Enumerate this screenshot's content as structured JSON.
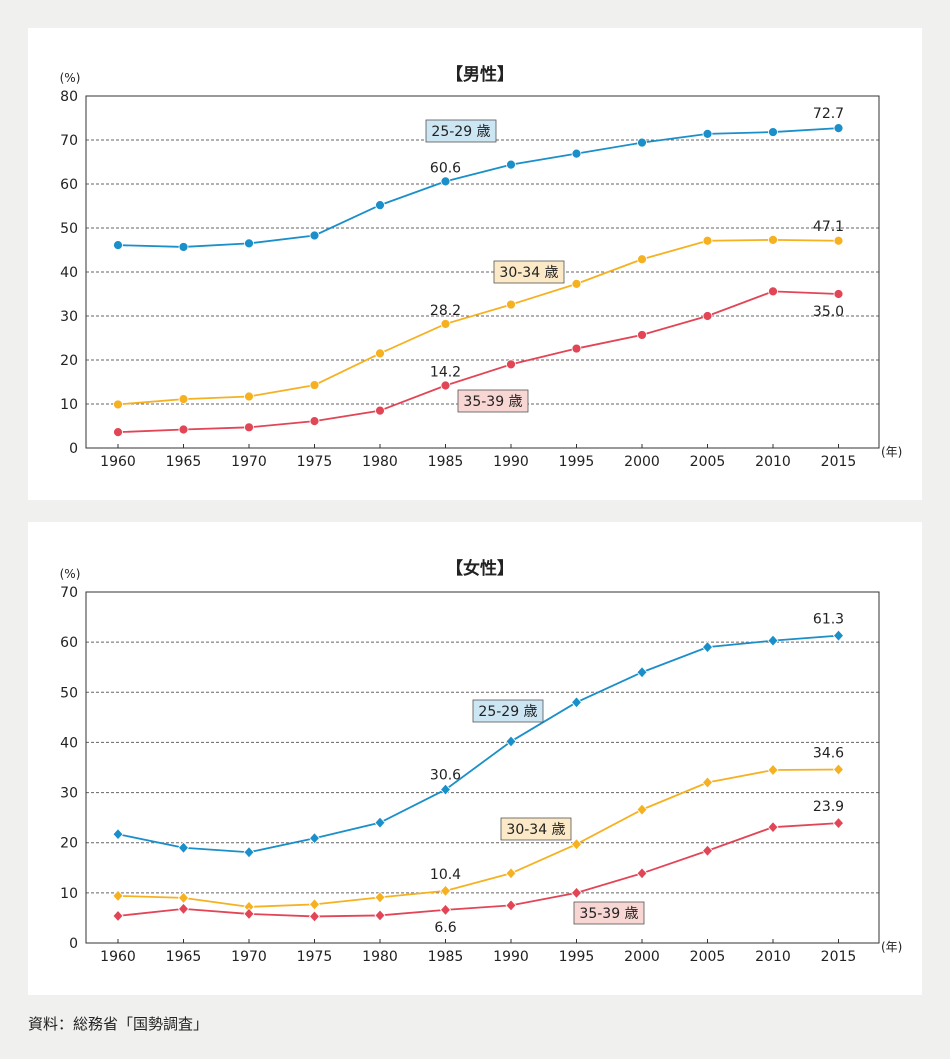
{
  "source_note": "資料：総務省「国勢調査」",
  "chart_data": [
    {
      "type": "line",
      "title": "【男性】",
      "ylabel": "(%)",
      "xunit": "(年)",
      "ylim": [
        0,
        80
      ],
      "yticks": [
        0,
        10,
        20,
        30,
        40,
        50,
        60,
        70,
        80
      ],
      "grid": true,
      "marker": "circle",
      "categories": [
        "1960",
        "1965",
        "1970",
        "1975",
        "1980",
        "1985",
        "1990",
        "1995",
        "2000",
        "2005",
        "2010",
        "2015"
      ],
      "series": [
        {
          "name": "25-29 歳",
          "color": "#1a8fc9",
          "label_bg": "#cde6f3",
          "values": [
            46.1,
            45.7,
            46.5,
            48.3,
            55.2,
            60.6,
            64.4,
            66.9,
            69.4,
            71.4,
            71.8,
            72.7
          ]
        },
        {
          "name": "30-34 歳",
          "color": "#f5b120",
          "label_bg": "#fbe9c8",
          "values": [
            9.9,
            11.1,
            11.7,
            14.3,
            21.5,
            28.2,
            32.6,
            37.3,
            42.9,
            47.1,
            47.3,
            47.1
          ]
        },
        {
          "name": "35-39 歳",
          "color": "#e24556",
          "label_bg": "#f7d6d3",
          "values": [
            3.6,
            4.2,
            4.7,
            6.1,
            8.5,
            14.2,
            19.0,
            22.6,
            25.7,
            30.0,
            35.6,
            35.0
          ]
        }
      ],
      "annotations": [
        {
          "series": 0,
          "index": 5,
          "text": "60.6"
        },
        {
          "series": 0,
          "index": 11,
          "text": "72.7"
        },
        {
          "series": 1,
          "index": 5,
          "text": "28.2"
        },
        {
          "series": 1,
          "index": 11,
          "text": "47.1"
        },
        {
          "series": 2,
          "index": 5,
          "text": "14.2"
        },
        {
          "series": 2,
          "index": 11,
          "text": "35.0"
        }
      ]
    },
    {
      "type": "line",
      "title": "【女性】",
      "ylabel": "(%)",
      "xunit": "(年)",
      "ylim": [
        0,
        70
      ],
      "yticks": [
        0,
        10,
        20,
        30,
        40,
        50,
        60,
        70
      ],
      "grid": true,
      "marker": "diamond",
      "categories": [
        "1960",
        "1965",
        "1970",
        "1975",
        "1980",
        "1985",
        "1990",
        "1995",
        "2000",
        "2005",
        "2010",
        "2015"
      ],
      "series": [
        {
          "name": "25-29 歳",
          "color": "#1a8fc9",
          "label_bg": "#cde6f3",
          "values": [
            21.7,
            19.0,
            18.1,
            20.9,
            24.0,
            30.6,
            40.2,
            48.0,
            54.0,
            59.0,
            60.3,
            61.3
          ]
        },
        {
          "name": "30-34 歳",
          "color": "#f5b120",
          "label_bg": "#fbe9c8",
          "values": [
            9.4,
            9.0,
            7.2,
            7.7,
            9.1,
            10.4,
            13.9,
            19.7,
            26.6,
            32.0,
            34.5,
            34.6
          ]
        },
        {
          "name": "35-39 歳",
          "color": "#e24556",
          "label_bg": "#f7d6d3",
          "values": [
            5.4,
            6.8,
            5.8,
            5.3,
            5.5,
            6.6,
            7.5,
            10.0,
            13.9,
            18.4,
            23.1,
            23.9
          ]
        }
      ],
      "annotations": [
        {
          "series": 0,
          "index": 5,
          "text": "30.6"
        },
        {
          "series": 0,
          "index": 11,
          "text": "61.3"
        },
        {
          "series": 1,
          "index": 5,
          "text": "10.4"
        },
        {
          "series": 1,
          "index": 11,
          "text": "34.6"
        },
        {
          "series": 2,
          "index": 5,
          "text": "6.6"
        },
        {
          "series": 2,
          "index": 11,
          "text": "23.9"
        }
      ]
    }
  ]
}
